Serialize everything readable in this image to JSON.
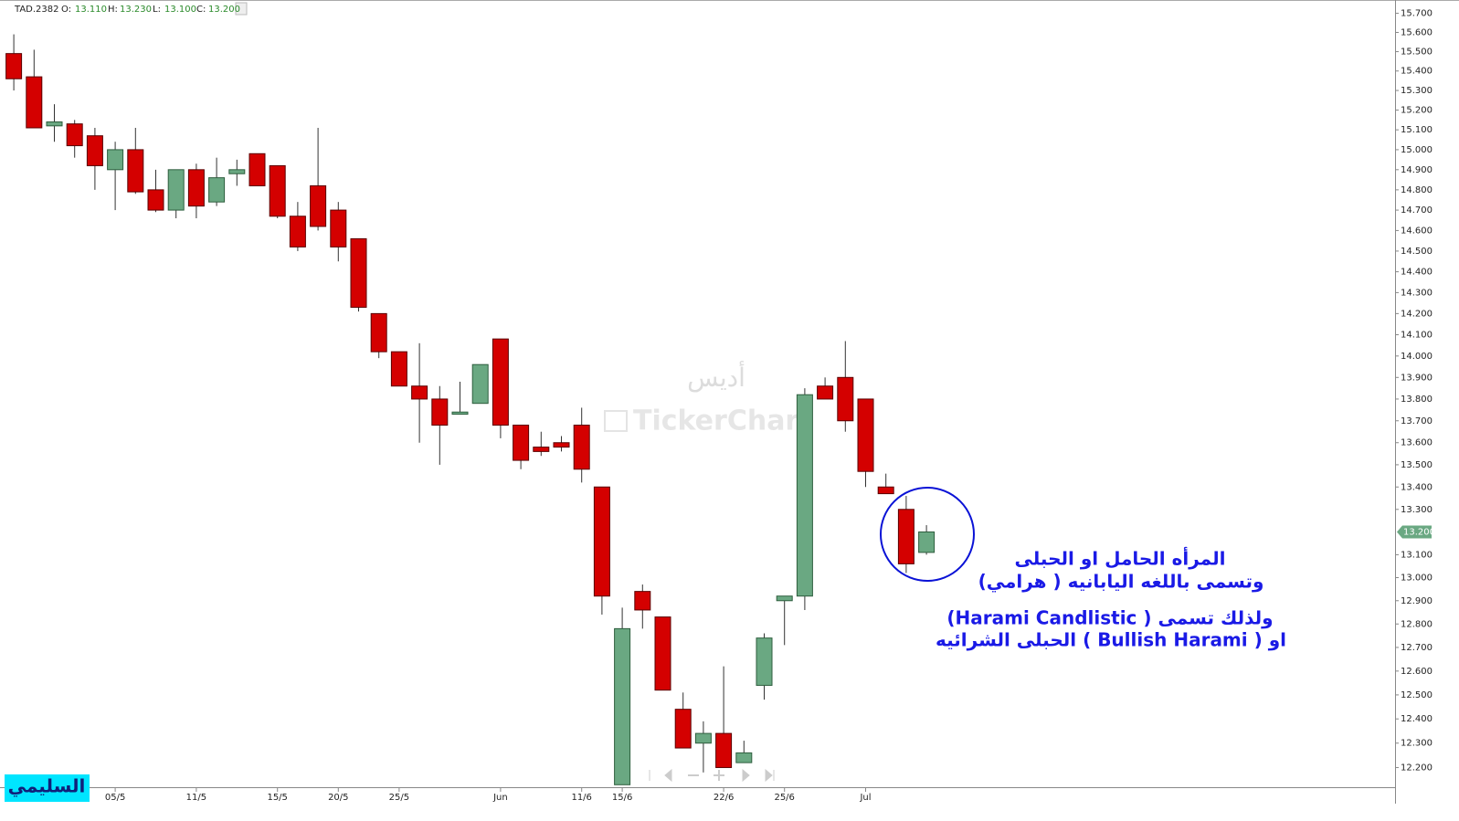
{
  "chart_data": {
    "type": "candlestick",
    "symbol": "TAD.2382",
    "ohlc_labels": [
      "O:",
      "H:",
      "L:",
      "C:"
    ],
    "ohlc_values": [
      13.11,
      13.23,
      13.1,
      13.2
    ],
    "ohlc_value_labels": [
      "13.110",
      "13.230",
      "13.100",
      "13.200"
    ],
    "categories": [
      null,
      null,
      null,
      null,
      null,
      "05/5",
      null,
      null,
      null,
      "11/5",
      null,
      null,
      null,
      "15/5",
      null,
      null,
      "20/5",
      null,
      null,
      "25/5",
      null,
      null,
      null,
      null,
      "Jun",
      null,
      null,
      null,
      "11/6",
      null,
      "15/6",
      null,
      null,
      null,
      null,
      "22/6",
      null,
      null,
      "25/6",
      null,
      null,
      null,
      "Jul",
      null,
      null,
      null
    ],
    "open": [
      15.49,
      15.37,
      15.12,
      15.13,
      15.07,
      14.9,
      15.0,
      14.8,
      14.7,
      14.9,
      14.74,
      14.88,
      14.98,
      14.92,
      14.67,
      14.82,
      14.7,
      14.56,
      14.2,
      14.02,
      13.86,
      13.8,
      13.73,
      13.78,
      14.08,
      13.68,
      13.58,
      13.6,
      13.68,
      13.4,
      12.13,
      12.94,
      12.83,
      12.44,
      12.3,
      12.34,
      12.22,
      12.54,
      12.9,
      12.92,
      13.86,
      13.9,
      13.8,
      13.4,
      13.3,
      13.11
    ],
    "high": [
      15.59,
      15.51,
      15.23,
      15.15,
      15.11,
      15.04,
      15.11,
      14.9,
      14.9,
      14.93,
      14.96,
      14.95,
      14.98,
      14.92,
      14.74,
      15.11,
      14.74,
      14.56,
      14.2,
      14.02,
      14.06,
      13.86,
      13.88,
      13.96,
      14.08,
      13.68,
      13.65,
      13.63,
      13.76,
      13.4,
      12.87,
      12.97,
      12.83,
      12.51,
      12.39,
      12.62,
      12.31,
      12.76,
      12.92,
      13.85,
      13.9,
      14.07,
      13.8,
      13.46,
      13.36,
      13.23
    ],
    "low": [
      15.3,
      15.11,
      15.04,
      14.96,
      14.8,
      14.7,
      14.78,
      14.69,
      14.66,
      14.66,
      14.72,
      14.82,
      14.82,
      14.66,
      14.5,
      14.6,
      14.45,
      14.21,
      13.99,
      13.86,
      13.6,
      13.5,
      13.73,
      13.78,
      13.62,
      13.48,
      13.54,
      13.56,
      13.42,
      12.84,
      12.13,
      12.78,
      12.52,
      12.28,
      12.18,
      12.2,
      12.22,
      12.48,
      12.71,
      12.86,
      13.8,
      13.65,
      13.4,
      13.37,
      13.02,
      13.1
    ],
    "close": [
      15.36,
      15.11,
      15.14,
      15.02,
      14.92,
      15.0,
      14.79,
      14.7,
      14.9,
      14.72,
      14.86,
      14.9,
      14.82,
      14.67,
      14.52,
      14.62,
      14.52,
      14.23,
      14.02,
      13.86,
      13.8,
      13.68,
      13.74,
      13.96,
      13.68,
      13.52,
      13.56,
      13.58,
      13.48,
      12.92,
      12.78,
      12.86,
      12.52,
      12.28,
      12.34,
      12.2,
      12.26,
      12.74,
      12.92,
      13.82,
      13.8,
      13.7,
      13.47,
      13.37,
      13.06,
      13.2
    ],
    "up_color": "#6aa882",
    "down_color": "#d40000",
    "log_scale": true,
    "ylim": [
      12.12,
      15.77
    ],
    "yticks": [
      {
        "value": 12.2,
        "label": "12.200"
      },
      {
        "value": 12.3,
        "label": "12.300"
      },
      {
        "value": 12.4,
        "label": "12.400"
      },
      {
        "value": 12.5,
        "label": "12.500"
      },
      {
        "value": 12.6,
        "label": "12.600"
      },
      {
        "value": 12.7,
        "label": "12.700"
      },
      {
        "value": 12.8,
        "label": "12.800"
      },
      {
        "value": 12.9,
        "label": "12.900"
      },
      {
        "value": 13.0,
        "label": "13.000"
      },
      {
        "value": 13.1,
        "label": "13.100"
      },
      {
        "value": 13.3,
        "label": "13.300"
      },
      {
        "value": 13.4,
        "label": "13.400"
      },
      {
        "value": 13.5,
        "label": "13.500"
      },
      {
        "value": 13.6,
        "label": "13.600"
      },
      {
        "value": 13.7,
        "label": "13.700"
      },
      {
        "value": 13.8,
        "label": "13.800"
      },
      {
        "value": 13.9,
        "label": "13.900"
      },
      {
        "value": 14.0,
        "label": "14.000"
      },
      {
        "value": 14.1,
        "label": "14.100"
      },
      {
        "value": 14.2,
        "label": "14.200"
      },
      {
        "value": 14.3,
        "label": "14.300"
      },
      {
        "value": 14.4,
        "label": "14.400"
      },
      {
        "value": 14.5,
        "label": "14.500"
      },
      {
        "value": 14.6,
        "label": "14.600"
      },
      {
        "value": 14.7,
        "label": "14.700"
      },
      {
        "value": 14.8,
        "label": "14.800"
      },
      {
        "value": 14.9,
        "label": "14.900"
      },
      {
        "value": 15.0,
        "label": "15.000"
      },
      {
        "value": 15.1,
        "label": "15.100"
      },
      {
        "value": 15.2,
        "label": "15.200"
      },
      {
        "value": 15.3,
        "label": "15.300"
      },
      {
        "value": 15.4,
        "label": "15.400"
      },
      {
        "value": 15.5,
        "label": "15.500"
      },
      {
        "value": 15.6,
        "label": "15.600"
      },
      {
        "value": 15.7,
        "label": "15.700"
      }
    ],
    "last_price": {
      "value": 13.2,
      "label": "13.200"
    },
    "watermark": [
      "أديس",
      "TickerChart"
    ],
    "annotation": [
      "المرأه الحامل او الحبلى",
      "وتسمى باللغه اليابانيه ( هرامي)",
      "ولذلك تسمى ( Harami Candlistic)",
      "او ( Bullish Harami )  الحبلى الشرائيه"
    ],
    "author": "السليمي"
  }
}
